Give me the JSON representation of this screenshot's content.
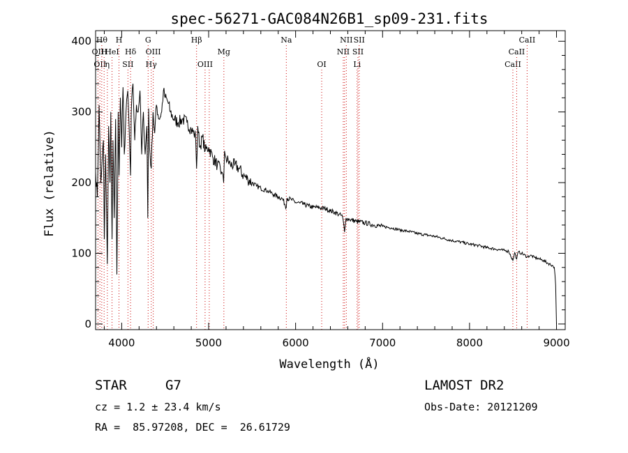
{
  "chart_data": {
    "type": "line",
    "title": "spec-56271-GAC084N26B1_sp09-231.fits",
    "xlabel": "Wavelength (Å)",
    "ylabel": "Flux (relative)",
    "xlim": [
      3700,
      9100
    ],
    "ylim": [
      -8,
      415
    ],
    "x_ticks": [
      4000,
      5000,
      6000,
      7000,
      8000,
      9000
    ],
    "y_ticks": [
      0,
      100,
      200,
      300,
      400
    ],
    "grid": false,
    "series": [
      {
        "name": "flux",
        "x": [
          3700,
          3720,
          3740,
          3760,
          3775,
          3790,
          3800,
          3815,
          3835,
          3850,
          3865,
          3875,
          3889,
          3900,
          3915,
          3930,
          3945,
          3960,
          3970,
          3985,
          4000,
          4015,
          4030,
          4050,
          4070,
          4085,
          4102,
          4110,
          4130,
          4150,
          4170,
          4190,
          4210,
          4230,
          4250,
          4270,
          4290,
          4300,
          4310,
          4320,
          4340,
          4360,
          4380,
          4400,
          4430,
          4460,
          4480,
          4500,
          4530,
          4560,
          4600,
          4650,
          4700,
          4750,
          4800,
          4830,
          4850,
          4861,
          4875,
          4900,
          4930,
          4960,
          5000,
          5050,
          5100,
          5150,
          5172,
          5183,
          5200,
          5250,
          5300,
          5350,
          5400,
          5450,
          5500,
          5550,
          5600,
          5650,
          5700,
          5750,
          5800,
          5850,
          5893,
          5900,
          5950,
          6000,
          6050,
          6100,
          6150,
          6200,
          6250,
          6300,
          6350,
          6400,
          6450,
          6500,
          6540,
          6563,
          6580,
          6620,
          6700,
          6800,
          6900,
          7000,
          7100,
          7200,
          7300,
          7400,
          7500,
          7600,
          7700,
          7800,
          7900,
          8000,
          8100,
          8200,
          8300,
          8400,
          8450,
          8498,
          8520,
          8542,
          8560,
          8600,
          8662,
          8700,
          8750,
          8800,
          8850,
          8900,
          8950,
          8975,
          8990,
          9000
        ],
        "values": [
          215,
          180,
          310,
          200,
          230,
          260,
          120,
          240,
          85,
          280,
          200,
          300,
          120,
          260,
          150,
          290,
          70,
          300,
          210,
          320,
          250,
          335,
          240,
          300,
          330,
          280,
          210,
          300,
          340,
          260,
          310,
          300,
          330,
          240,
          300,
          240,
          280,
          150,
          305,
          250,
          220,
          300,
          270,
          310,
          290,
          300,
          330,
          320,
          315,
          300,
          290,
          285,
          290,
          285,
          275,
          270,
          265,
          220,
          280,
          250,
          265,
          245,
          250,
          235,
          225,
          215,
          200,
          245,
          235,
          225,
          225,
          220,
          210,
          205,
          200,
          195,
          192,
          190,
          187,
          183,
          180,
          177,
          165,
          178,
          176,
          172,
          171,
          169,
          167,
          165,
          165,
          164,
          163,
          160,
          158,
          155,
          152,
          130,
          150,
          148,
          145,
          143,
          140,
          138,
          136,
          133,
          131,
          128,
          126,
          124,
          121,
          118,
          116,
          113,
          111,
          108,
          106,
          104,
          103,
          90,
          101,
          92,
          102,
          100,
          95,
          97,
          94,
          92,
          90,
          86,
          83,
          80,
          55,
          0
        ]
      }
    ],
    "spectral_lines": [
      {
        "wl": 3727,
        "label": "OII",
        "row": 2
      },
      {
        "wl": 3750,
        "label": "OII",
        "row": 3
      },
      {
        "wl": 3771,
        "label": "Hθ",
        "row": 1
      },
      {
        "wl": 3798,
        "label": "H",
        "row": 2
      },
      {
        "wl": 3835,
        "label": "η",
        "row": 3
      },
      {
        "wl": 3889,
        "label": "HeI",
        "row": 2
      },
      {
        "wl": 3969,
        "label": "H",
        "row": 1
      },
      {
        "wl": 4072,
        "label": "SII",
        "row": 3
      },
      {
        "wl": 4102,
        "label": "Hδ",
        "row": 2
      },
      {
        "wl": 4304,
        "label": "G",
        "row": 1
      },
      {
        "wl": 4340,
        "label": "Hγ",
        "row": 3
      },
      {
        "wl": 4363,
        "label": "OIII",
        "row": 2
      },
      {
        "wl": 4861,
        "label": "Hβ",
        "row": 1
      },
      {
        "wl": 4959,
        "label": "OIII",
        "row": 3
      },
      {
        "wl": 5007,
        "label": "",
        "row": 3
      },
      {
        "wl": 5175,
        "label": "Mg",
        "row": 2
      },
      {
        "wl": 5893,
        "label": "Na",
        "row": 1
      },
      {
        "wl": 6300,
        "label": "OI",
        "row": 3
      },
      {
        "wl": 6548,
        "label": "NII",
        "row": 2
      },
      {
        "wl": 6563,
        "label": "",
        "row": 2
      },
      {
        "wl": 6583,
        "label": "NII",
        "row": 1
      },
      {
        "wl": 6707,
        "label": "Li",
        "row": 3
      },
      {
        "wl": 6717,
        "label": "SII",
        "row": 2
      },
      {
        "wl": 6731,
        "label": "SII",
        "row": 1
      },
      {
        "wl": 8498,
        "label": "CaII",
        "row": 3
      },
      {
        "wl": 8542,
        "label": "CaII",
        "row": 2
      },
      {
        "wl": 8662,
        "label": "CaII",
        "row": 1
      }
    ]
  },
  "info": {
    "object_class": "STAR",
    "subclass": "G7",
    "release": "LAMOST DR2",
    "cz": "cz = 1.2 ± 23.4 km/s",
    "obs_date": "Obs-Date: 20121209",
    "coords": "RA =  85.97208, DEC =  26.61729"
  },
  "colors": {
    "line_marker": "#cc0000",
    "spectrum": "#000000",
    "axis": "#000000"
  }
}
